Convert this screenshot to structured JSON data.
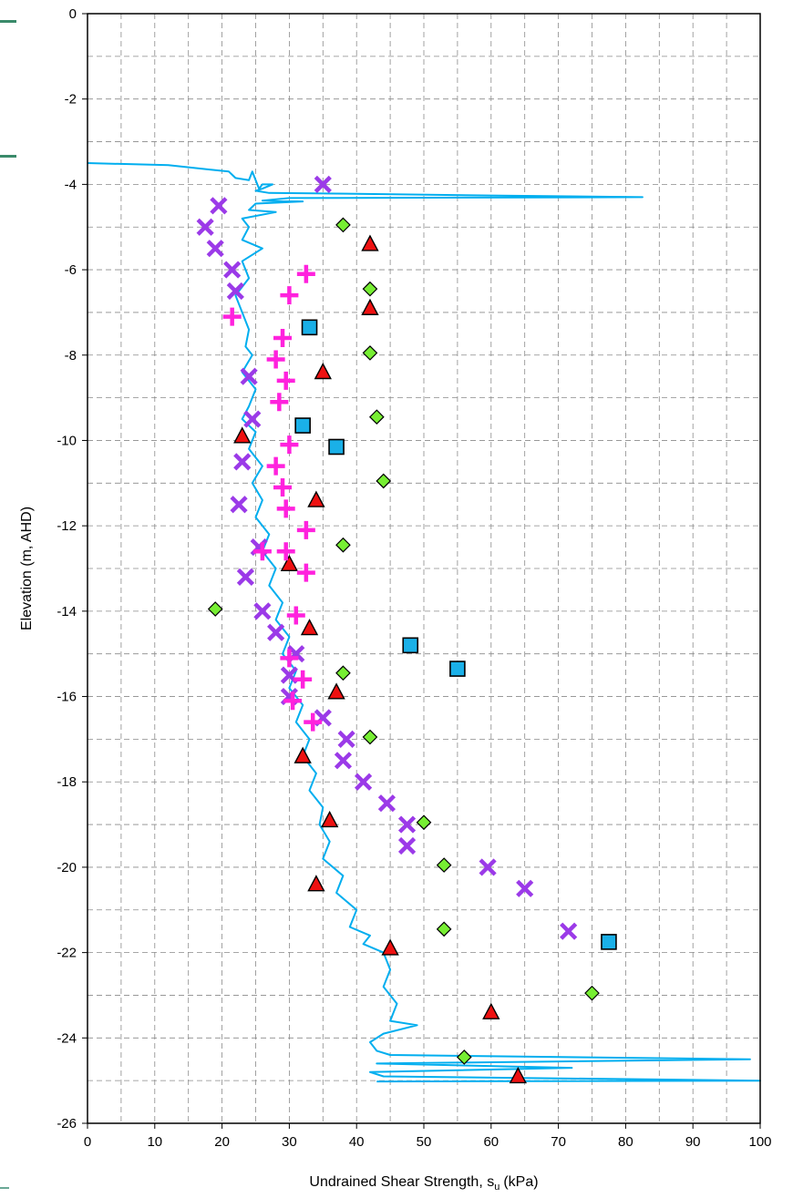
{
  "chart_data": {
    "type": "scatter",
    "title": "",
    "xlabel": "Undrained Shear Strength, s",
    "xlabel_sub": "u",
    "xlabel_unit": "(kPa)",
    "ylabel": "Elevation (m, AHD)",
    "xlim": [
      0,
      100
    ],
    "ylim": [
      -26,
      0
    ],
    "x_ticks": [
      0,
      10,
      20,
      30,
      40,
      50,
      60,
      70,
      80,
      90,
      100
    ],
    "y_ticks": [
      0,
      -2,
      -4,
      -6,
      -8,
      -10,
      -12,
      -14,
      -16,
      -18,
      -20,
      -22,
      -24,
      -26
    ],
    "grid": "dashed major and minor",
    "legend": "none",
    "series": [
      {
        "marker": "line",
        "color": "#00aeef",
        "points": [
          [
            0,
            -3.5
          ],
          [
            12,
            -3.55
          ],
          [
            18,
            -3.65
          ],
          [
            21,
            -3.7
          ],
          [
            22,
            -3.85
          ],
          [
            24,
            -3.9
          ],
          [
            24.5,
            -3.7
          ],
          [
            25,
            -3.9
          ],
          [
            25.5,
            -4.1
          ],
          [
            26,
            -4.0
          ],
          [
            27.5,
            -4.0
          ],
          [
            26,
            -4.1
          ],
          [
            25,
            -4.15
          ],
          [
            27,
            -4.2
          ],
          [
            40,
            -4.22
          ],
          [
            60,
            -4.26
          ],
          [
            82.5,
            -4.3
          ],
          [
            30,
            -4.32
          ],
          [
            26,
            -4.38
          ],
          [
            32,
            -4.4
          ],
          [
            25,
            -4.45
          ],
          [
            24,
            -4.6
          ],
          [
            28,
            -4.65
          ],
          [
            23,
            -4.8
          ],
          [
            24,
            -5.0
          ],
          [
            23,
            -5.3
          ],
          [
            26,
            -5.5
          ],
          [
            23,
            -5.8
          ],
          [
            24,
            -6.2
          ],
          [
            22,
            -6.6
          ],
          [
            23,
            -7.0
          ],
          [
            24,
            -7.4
          ],
          [
            23.5,
            -7.8
          ],
          [
            24.5,
            -8.0
          ],
          [
            23,
            -8.4
          ],
          [
            25,
            -8.8
          ],
          [
            24,
            -9.2
          ],
          [
            23,
            -9.5
          ],
          [
            25,
            -9.8
          ],
          [
            24,
            -10.2
          ],
          [
            26,
            -10.6
          ],
          [
            24.5,
            -11.0
          ],
          [
            26,
            -11.4
          ],
          [
            25,
            -11.8
          ],
          [
            27,
            -12.2
          ],
          [
            26,
            -12.6
          ],
          [
            28,
            -13.0
          ],
          [
            27,
            -13.4
          ],
          [
            29,
            -13.8
          ],
          [
            28,
            -14.2
          ],
          [
            30,
            -14.6
          ],
          [
            29,
            -15.0
          ],
          [
            31,
            -15.4
          ],
          [
            30,
            -15.8
          ],
          [
            32,
            -16.2
          ],
          [
            31,
            -16.6
          ],
          [
            33,
            -17.0
          ],
          [
            32,
            -17.4
          ],
          [
            34,
            -17.8
          ],
          [
            33,
            -18.2
          ],
          [
            35,
            -18.6
          ],
          [
            34.5,
            -19.0
          ],
          [
            36,
            -19.4
          ],
          [
            35,
            -19.8
          ],
          [
            38,
            -20.2
          ],
          [
            37,
            -20.6
          ],
          [
            40,
            -21.0
          ],
          [
            39,
            -21.4
          ],
          [
            42,
            -21.6
          ],
          [
            41,
            -21.8
          ],
          [
            44,
            -22.0
          ],
          [
            45,
            -22.4
          ],
          [
            44,
            -22.8
          ],
          [
            46,
            -23.2
          ],
          [
            45,
            -23.6
          ],
          [
            49,
            -23.7
          ],
          [
            44,
            -23.9
          ],
          [
            42,
            -24.1
          ],
          [
            43,
            -24.3
          ],
          [
            45,
            -24.4
          ],
          [
            98.5,
            -24.5
          ],
          [
            43,
            -24.6
          ],
          [
            72,
            -24.7
          ],
          [
            42,
            -24.8
          ],
          [
            44,
            -24.9
          ],
          [
            100,
            -25.0
          ],
          [
            43,
            -25.02
          ]
        ]
      },
      {
        "marker": "square",
        "color": "#1ab0e8",
        "points": [
          [
            33,
            -7.35
          ],
          [
            32,
            -9.65
          ],
          [
            37,
            -10.15
          ],
          [
            48,
            -14.8
          ],
          [
            55,
            -15.35
          ],
          [
            77.5,
            -21.75
          ]
        ]
      },
      {
        "marker": "diamond",
        "color": "#77ee33",
        "points": [
          [
            38,
            -4.95
          ],
          [
            42,
            -6.45
          ],
          [
            42,
            -7.95
          ],
          [
            43,
            -9.45
          ],
          [
            44,
            -10.95
          ],
          [
            38,
            -12.45
          ],
          [
            19,
            -13.95
          ],
          [
            38,
            -15.45
          ],
          [
            42,
            -16.95
          ],
          [
            50,
            -18.95
          ],
          [
            53,
            -19.95
          ],
          [
            53,
            -21.45
          ],
          [
            75,
            -22.95
          ],
          [
            56,
            -24.45
          ]
        ]
      },
      {
        "marker": "triangle",
        "color": "#ee1111",
        "points": [
          [
            42,
            -5.4
          ],
          [
            42,
            -6.9
          ],
          [
            35,
            -8.4
          ],
          [
            23,
            -9.9
          ],
          [
            34,
            -11.4
          ],
          [
            30,
            -12.9
          ],
          [
            33,
            -14.4
          ],
          [
            37,
            -15.9
          ],
          [
            32,
            -17.4
          ],
          [
            36,
            -18.9
          ],
          [
            34,
            -20.4
          ],
          [
            45,
            -21.9
          ],
          [
            60,
            -23.4
          ],
          [
            64,
            -24.9
          ]
        ]
      },
      {
        "marker": "x",
        "color": "#9b3ae8",
        "points": [
          [
            35,
            -4.0
          ],
          [
            19.5,
            -4.5
          ],
          [
            17.5,
            -5.0
          ],
          [
            19,
            -5.5
          ],
          [
            21.5,
            -6.0
          ],
          [
            22,
            -6.5
          ],
          [
            24,
            -8.5
          ],
          [
            24.5,
            -9.5
          ],
          [
            23,
            -10.5
          ],
          [
            22.5,
            -11.5
          ],
          [
            25.5,
            -12.5
          ],
          [
            23.5,
            -13.2
          ],
          [
            26,
            -14.0
          ],
          [
            28,
            -14.5
          ],
          [
            31,
            -15.0
          ],
          [
            30,
            -15.5
          ],
          [
            30,
            -16.0
          ],
          [
            35,
            -16.5
          ],
          [
            38.5,
            -17.0
          ],
          [
            38,
            -17.5
          ],
          [
            41,
            -18.0
          ],
          [
            44.5,
            -18.5
          ],
          [
            47.5,
            -19.0
          ],
          [
            47.5,
            -19.5
          ],
          [
            59.5,
            -20.0
          ],
          [
            65,
            -20.5
          ],
          [
            71.5,
            -21.5
          ]
        ]
      },
      {
        "marker": "plus",
        "color": "#ff22dd",
        "points": [
          [
            32.5,
            -6.1
          ],
          [
            30,
            -6.6
          ],
          [
            21.5,
            -7.1
          ],
          [
            29,
            -7.6
          ],
          [
            28,
            -8.1
          ],
          [
            29.5,
            -8.6
          ],
          [
            28.5,
            -9.1
          ],
          [
            30,
            -10.1
          ],
          [
            28,
            -10.6
          ],
          [
            29,
            -11.1
          ],
          [
            29.5,
            -11.6
          ],
          [
            32.5,
            -12.1
          ],
          [
            26,
            -12.6
          ],
          [
            29.5,
            -12.6
          ],
          [
            32.5,
            -13.1
          ],
          [
            31,
            -14.1
          ],
          [
            30,
            -15.1
          ],
          [
            32,
            -15.6
          ],
          [
            30.5,
            -16.1
          ],
          [
            33.5,
            -16.6
          ]
        ]
      }
    ]
  }
}
